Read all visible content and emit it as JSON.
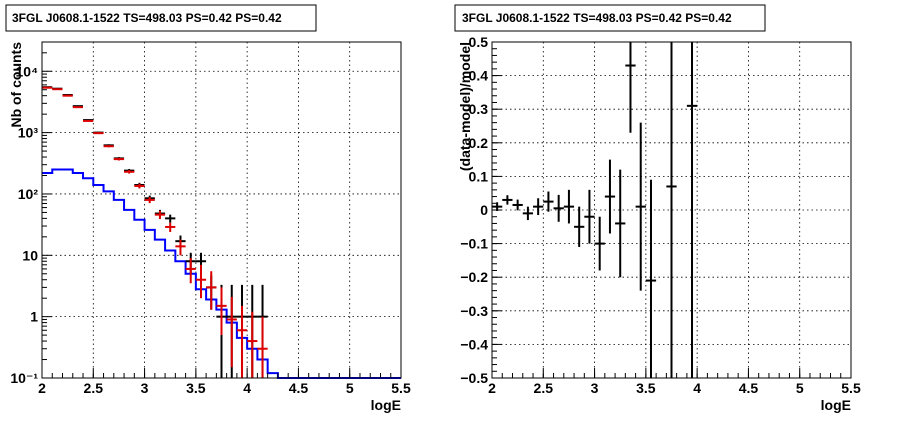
{
  "chart_data": [
    {
      "type": "line",
      "panel": "left",
      "title": "3FGL J0608.1-1522 TS=498.03 PS=0.42 PS=0.42",
      "xlabel": "logE",
      "ylabel": "Nb of counts",
      "xlim": [
        2,
        5.5
      ],
      "ylim": [
        0.1,
        30000
      ],
      "yscale": "log",
      "grid": true,
      "x_ticks": [
        {
          "value": 2,
          "label": "2"
        },
        {
          "value": 2.5,
          "label": "2.5"
        },
        {
          "value": 3,
          "label": "3"
        },
        {
          "value": 3.5,
          "label": "3.5"
        },
        {
          "value": 4,
          "label": "4"
        },
        {
          "value": 4.5,
          "label": "4.5"
        },
        {
          "value": 5,
          "label": "5"
        },
        {
          "value": 5.5,
          "label": "5.5"
        }
      ],
      "y_ticks": [
        {
          "value": 0.1,
          "label": "10⁻¹"
        },
        {
          "value": 1,
          "label": "1"
        },
        {
          "value": 10,
          "label": "10"
        },
        {
          "value": 100,
          "label": "10²"
        },
        {
          "value": 1000,
          "label": "10³"
        },
        {
          "value": 10000,
          "label": "10⁴"
        }
      ],
      "bin_width": 0.1,
      "series": [
        {
          "kind": "step",
          "color": "#0000ff",
          "x_edges": [
            2.0,
            2.1,
            2.2,
            2.3,
            2.4,
            2.5,
            2.6,
            2.7,
            2.8,
            2.9,
            3.0,
            3.1,
            3.2,
            3.3,
            3.4,
            3.5,
            3.6,
            3.7,
            3.8,
            3.9,
            4.0,
            4.1,
            4.2,
            4.3,
            4.4,
            4.5,
            4.6,
            4.7,
            4.8,
            4.9,
            5.0,
            5.1,
            5.2,
            5.3,
            5.4,
            5.5
          ],
          "values": [
            220,
            250,
            250,
            220,
            180,
            140,
            110,
            80,
            55,
            38,
            26,
            18,
            12,
            8,
            5,
            2.8,
            1.9,
            1.3,
            0.8,
            0.45,
            0.3,
            0.2,
            0.12,
            0.1,
            0.1,
            0.1,
            0.1,
            0.1,
            0.1,
            0.1,
            0.1,
            0.1,
            0.1,
            0.1,
            0.1
          ]
        },
        {
          "kind": "errorbar",
          "color": "#000000",
          "x": [
            2.05,
            2.15,
            2.25,
            2.35,
            2.45,
            2.55,
            2.65,
            2.75,
            2.85,
            2.95,
            3.05,
            3.15,
            3.25,
            3.35,
            3.45,
            3.55,
            3.65,
            3.75,
            3.85,
            3.95,
            4.05,
            4.15
          ],
          "y": [
            5500,
            5200,
            4100,
            2700,
            1600,
            1000,
            620,
            380,
            240,
            140,
            85,
            48,
            40,
            17,
            8,
            8,
            3,
            1,
            1,
            1,
            1,
            1
          ],
          "yerr_low": [
            74,
            72,
            64,
            52,
            40,
            32,
            25,
            19,
            15,
            12,
            9,
            7,
            6,
            4,
            3,
            3,
            1.7,
            0.9,
            0.9,
            0.9,
            0.9,
            0.9
          ],
          "yerr_high": [
            74,
            72,
            64,
            52,
            40,
            32,
            25,
            19,
            15,
            12,
            9,
            7,
            6,
            4,
            3,
            3,
            1.7,
            2.3,
            2.3,
            2.3,
            2.3,
            2.3
          ]
        },
        {
          "kind": "errorbar",
          "color": "#dd0000",
          "x": [
            2.05,
            2.15,
            2.25,
            2.35,
            2.45,
            2.55,
            2.65,
            2.75,
            2.85,
            2.95,
            3.05,
            3.15,
            3.25,
            3.35,
            3.45,
            3.55,
            3.65,
            3.75,
            3.85,
            3.95,
            4.05,
            4.15
          ],
          "y": [
            5400,
            5100,
            4000,
            2600,
            1550,
            980,
            600,
            370,
            230,
            135,
            80,
            46,
            29,
            14,
            6,
            4,
            3,
            1.5,
            0.9,
            0.6,
            0.4,
            0.3
          ],
          "yerr_low": [
            74,
            72,
            64,
            52,
            40,
            32,
            25,
            19,
            15,
            12,
            9,
            7,
            5,
            4,
            2.5,
            2,
            1.7,
            1.0,
            0.75,
            0.5,
            0.35,
            0.25
          ],
          "yerr_high": [
            74,
            72,
            64,
            52,
            40,
            32,
            25,
            19,
            15,
            12,
            9,
            7,
            5,
            4,
            3,
            3,
            2.5,
            1.5,
            1.2,
            0.9,
            0.8,
            0.7
          ]
        }
      ]
    },
    {
      "type": "scatter",
      "panel": "right",
      "title": "3FGL J0608.1-1522 TS=498.03 PS=0.42 PS=0.42",
      "xlabel": "logE",
      "ylabel": "(data-model)/model",
      "xlim": [
        2,
        5.5
      ],
      "ylim": [
        -0.5,
        0.5
      ],
      "grid": true,
      "x_ticks": [
        {
          "value": 2,
          "label": "2"
        },
        {
          "value": 2.5,
          "label": "2.5"
        },
        {
          "value": 3,
          "label": "3"
        },
        {
          "value": 3.5,
          "label": "3.5"
        },
        {
          "value": 4,
          "label": "4"
        },
        {
          "value": 4.5,
          "label": "4.5"
        },
        {
          "value": 5,
          "label": "5"
        },
        {
          "value": 5.5,
          "label": "5.5"
        }
      ],
      "y_ticks": [
        {
          "value": -0.5,
          "label": "−0.5"
        },
        {
          "value": -0.4,
          "label": "−0.4"
        },
        {
          "value": -0.3,
          "label": "−0.3"
        },
        {
          "value": -0.2,
          "label": "−0.2"
        },
        {
          "value": -0.1,
          "label": "−0.1"
        },
        {
          "value": 0,
          "label": "0"
        },
        {
          "value": 0.1,
          "label": "0.1"
        },
        {
          "value": 0.2,
          "label": "0.2"
        },
        {
          "value": 0.3,
          "label": "0.3"
        },
        {
          "value": 0.4,
          "label": "0.4"
        },
        {
          "value": 0.5,
          "label": "0.5"
        }
      ],
      "bin_width": 0.1,
      "series": [
        {
          "kind": "errorbar",
          "color": "#000000",
          "x": [
            2.05,
            2.15,
            2.25,
            2.35,
            2.45,
            2.55,
            2.65,
            2.75,
            2.85,
            2.95,
            3.05,
            3.15,
            3.25,
            3.35,
            3.45,
            3.55,
            3.75,
            3.95
          ],
          "y": [
            0.01,
            0.03,
            0.015,
            -0.01,
            0.01,
            0.025,
            0.005,
            0.01,
            -0.05,
            -0.02,
            -0.1,
            0.04,
            -0.04,
            0.43,
            0.01,
            -0.21,
            0.07,
            0.31
          ],
          "yerr": [
            0.013,
            0.014,
            0.016,
            0.02,
            0.025,
            0.03,
            0.04,
            0.05,
            0.06,
            0.08,
            0.08,
            0.11,
            0.16,
            0.2,
            0.25,
            0.3,
            1.0,
            1.0
          ]
        }
      ]
    }
  ]
}
